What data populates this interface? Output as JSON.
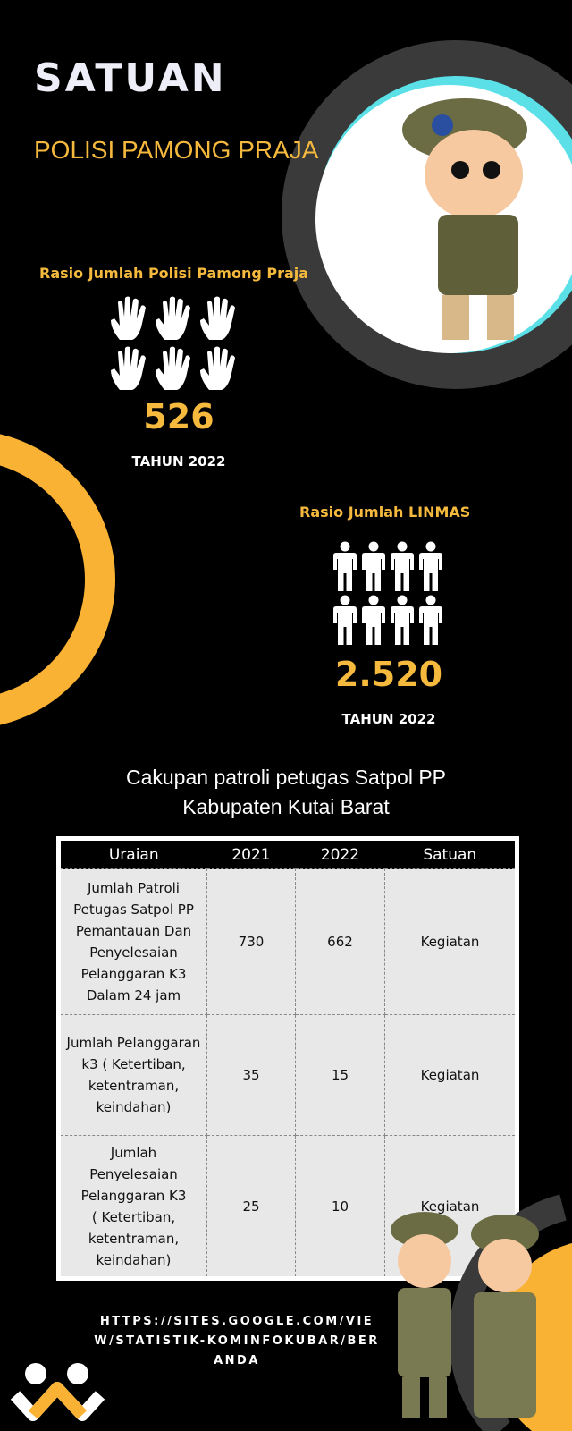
{
  "header": {
    "title": "SATUAN",
    "subtitle": "POLISI PAMONG PRAJA"
  },
  "satpol": {
    "label": "Rasio Jumlah Polisi Pamong Praja",
    "value": "526",
    "year": "TAHUN 2022",
    "icon": "hand-icon"
  },
  "linmas": {
    "label": "Rasio Jumlah LINMAS",
    "value": "2.520",
    "year": "TAHUN 2022",
    "icon": "person-icon"
  },
  "table_title": [
    "Cakupan patroli petugas Satpol PP",
    "Kabupaten Kutai Barat"
  ],
  "table": {
    "headers": [
      "Uraian",
      "2021",
      "2022",
      "Satuan"
    ],
    "rows": [
      [
        "Jumlah Patroli Petugas Satpol PP Pemantauan Dan Penyelesaian Pelanggaran K3 Dalam 24 jam",
        "730",
        "662",
        "Kegiatan"
      ],
      [
        "Jumlah Pelanggaran k3 ( Ketertiban, ketentraman, keindahan)",
        "35",
        "15",
        "Kegiatan"
      ],
      [
        "Jumlah Penyelesaian Pelanggaran K3 ( Ketertiban, ketentraman, keindahan)",
        "25",
        "10",
        "Kegiatan"
      ]
    ]
  },
  "footer": {
    "url": "HTTPS://SITES.GOOGLE.COM/VIEW/STATISTIK-KOMINFOKUBAR/BERANDA"
  },
  "colors": {
    "accent": "#f9b233",
    "ring": "#3a3a3a",
    "background": "#000000"
  }
}
